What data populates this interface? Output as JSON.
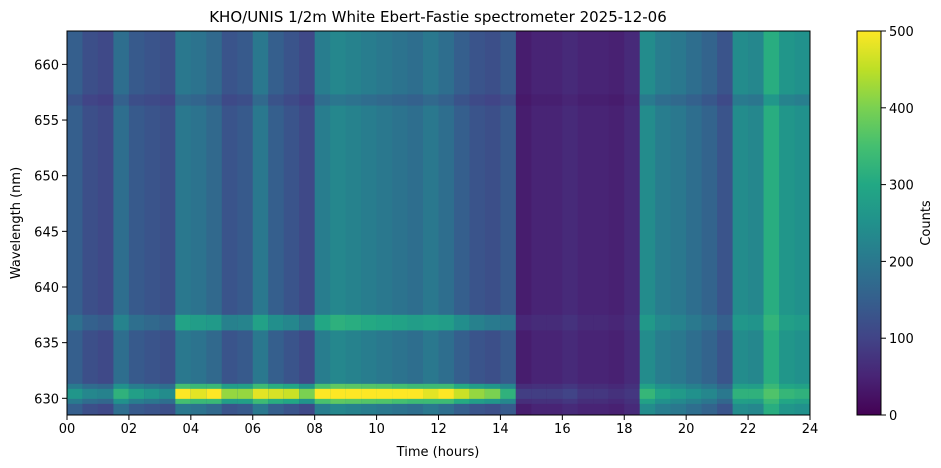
{
  "chart_data": {
    "type": "heatmap",
    "title": "KHO/UNIS 1/2m White Ebert-Fastie spectrometer 2025-12-06",
    "xlabel": "Time (hours)",
    "ylabel": "Wavelength (nm)",
    "xlim": [
      0,
      24
    ],
    "ylim": [
      628.5,
      663
    ],
    "x_ticks": [
      "00",
      "02",
      "04",
      "06",
      "08",
      "10",
      "12",
      "14",
      "16",
      "18",
      "20",
      "22",
      "24"
    ],
    "y_ticks": [
      630,
      635,
      640,
      645,
      650,
      655,
      660
    ],
    "colorbar": {
      "label": "Counts",
      "range": [
        0,
        500
      ],
      "ticks": [
        0,
        100,
        200,
        300,
        400,
        500
      ],
      "colormap": "viridis"
    },
    "emission_lines_nm": [
      630.4,
      636.8,
      656.8
    ],
    "time_hours": [
      0,
      0.5,
      1,
      1.5,
      2,
      2.5,
      3,
      3.5,
      4,
      4.5,
      5,
      5.5,
      6,
      6.5,
      7,
      7.5,
      8,
      8.5,
      9,
      9.5,
      10,
      10.5,
      11,
      11.5,
      12,
      12.5,
      13,
      13.5,
      14,
      14.5,
      15,
      15.5,
      16,
      16.5,
      17,
      17.5,
      18,
      18.5,
      19,
      19.5,
      20,
      20.5,
      21,
      21.5,
      22,
      22.5,
      23,
      23.5
    ],
    "background_counts": [
      150,
      120,
      110,
      180,
      140,
      130,
      120,
      200,
      190,
      170,
      130,
      140,
      200,
      150,
      130,
      110,
      210,
      230,
      220,
      210,
      200,
      190,
      180,
      200,
      180,
      150,
      130,
      120,
      140,
      40,
      50,
      50,
      60,
      50,
      50,
      45,
      60,
      240,
      210,
      200,
      180,
      160,
      130,
      240,
      230,
      310,
      260,
      250
    ],
    "line_630_peak_counts": [
      260,
      230,
      220,
      320,
      280,
      260,
      240,
      500,
      480,
      500,
      420,
      420,
      480,
      470,
      460,
      400,
      500,
      520,
      520,
      520,
      520,
      510,
      500,
      480,
      500,
      460,
      420,
      400,
      320,
      90,
      90,
      90,
      100,
      80,
      80,
      70,
      80,
      330,
      290,
      270,
      250,
      230,
      200,
      320,
      320,
      360,
      330,
      320
    ]
  }
}
